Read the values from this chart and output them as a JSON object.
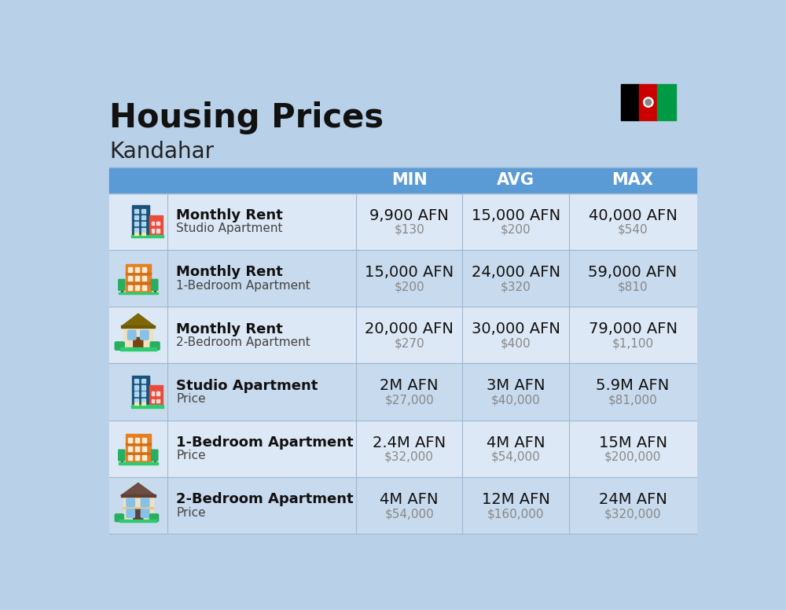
{
  "title": "Housing Prices",
  "subtitle": "Kandahar",
  "background_color": "#b8d0e8",
  "header_bg_color": "#5b9bd5",
  "header_text_color": "#ffffff",
  "row_bg_colors": [
    "#dce8f5",
    "#c8daed"
  ],
  "divider_color": "#a0b8d0",
  "header_labels": [
    "MIN",
    "AVG",
    "MAX"
  ],
  "rows": [
    {
      "icon_type": "blue_office",
      "label_bold": "Monthly Rent",
      "label_sub": "Studio Apartment",
      "min_main": "9,900 AFN",
      "min_sub": "$130",
      "avg_main": "15,000 AFN",
      "avg_sub": "$200",
      "max_main": "40,000 AFN",
      "max_sub": "$540"
    },
    {
      "icon_type": "orange_office",
      "label_bold": "Monthly Rent",
      "label_sub": "1-Bedroom Apartment",
      "min_main": "15,000 AFN",
      "min_sub": "$200",
      "avg_main": "24,000 AFN",
      "avg_sub": "$320",
      "max_main": "59,000 AFN",
      "max_sub": "$810"
    },
    {
      "icon_type": "tan_house",
      "label_bold": "Monthly Rent",
      "label_sub": "2-Bedroom Apartment",
      "min_main": "20,000 AFN",
      "min_sub": "$270",
      "avg_main": "30,000 AFN",
      "avg_sub": "$400",
      "max_main": "79,000 AFN",
      "max_sub": "$1,100"
    },
    {
      "icon_type": "blue_office",
      "label_bold": "Studio Apartment",
      "label_sub": "Price",
      "min_main": "2M AFN",
      "min_sub": "$27,000",
      "avg_main": "3M AFN",
      "avg_sub": "$40,000",
      "max_main": "5.9M AFN",
      "max_sub": "$81,000"
    },
    {
      "icon_type": "orange_office",
      "label_bold": "1-Bedroom Apartment",
      "label_sub": "Price",
      "min_main": "2.4M AFN",
      "min_sub": "$32,000",
      "avg_main": "4M AFN",
      "avg_sub": "$54,000",
      "max_main": "15M AFN",
      "max_sub": "$200,000"
    },
    {
      "icon_type": "brown_house",
      "label_bold": "2-Bedroom Apartment",
      "label_sub": "Price",
      "min_main": "4M AFN",
      "min_sub": "$54,000",
      "avg_main": "12M AFN",
      "avg_sub": "$160,000",
      "max_main": "24M AFN",
      "max_sub": "$320,000"
    }
  ],
  "flag_colors": [
    "#000000",
    "#cc0001",
    "#009a44"
  ],
  "title_fontsize": 30,
  "subtitle_fontsize": 20,
  "header_fontsize": 15,
  "main_val_fontsize": 14,
  "sub_val_fontsize": 11,
  "label_bold_fontsize": 13,
  "label_sub_fontsize": 11
}
